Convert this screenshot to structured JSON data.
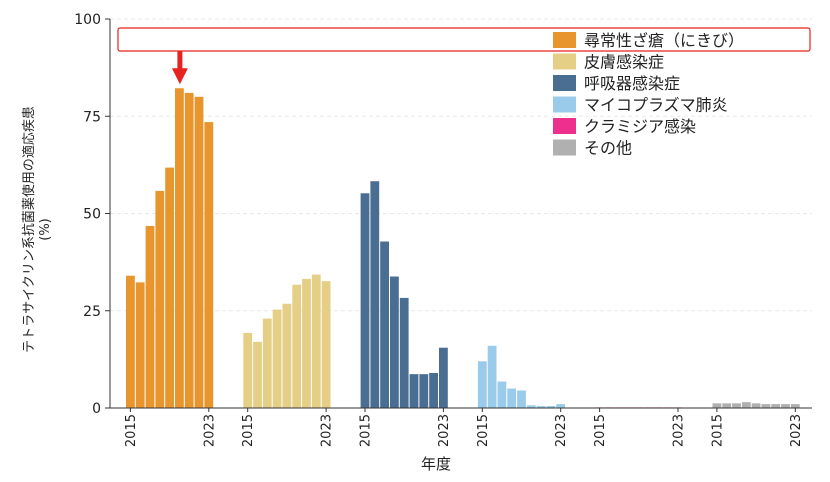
{
  "chart_data": {
    "type": "bar",
    "xlabel": "年度",
    "ylabel_lines": [
      "テトラサイクリン系抗菌薬使用の適応疾患",
      "(%)"
    ],
    "ylim": [
      0,
      100
    ],
    "yticks": [
      0,
      25,
      50,
      75,
      100
    ],
    "grid": true,
    "legend_position": "top-right",
    "group_tick_labels": [
      "2015",
      "2023"
    ],
    "series": [
      {
        "name": "尋常性ざ瘡（にきび）",
        "color": "#e8952e",
        "x": [
          2015,
          2016,
          2017,
          2018,
          2019,
          2020,
          2021,
          2022,
          2023
        ],
        "values": [
          34,
          32.3,
          46.8,
          55.8,
          61.8,
          82.2,
          81,
          80,
          73.5
        ]
      },
      {
        "name": "皮膚感染症",
        "color": "#e5cf86",
        "x": [
          2015,
          2016,
          2017,
          2018,
          2019,
          2020,
          2021,
          2022,
          2023
        ],
        "values": [
          19.3,
          17,
          23,
          25.3,
          26.8,
          31.7,
          33.2,
          34.3,
          32.6
        ]
      },
      {
        "name": "呼吸器感染症",
        "color": "#4a6e92",
        "x": [
          2015,
          2016,
          2017,
          2018,
          2019,
          2020,
          2021,
          2022,
          2023
        ],
        "values": [
          55.2,
          58.3,
          42.8,
          33.8,
          28.3,
          8.7,
          8.7,
          9,
          15.5
        ]
      },
      {
        "name": "マイコプラズマ肺炎",
        "color": "#9acbea",
        "x": [
          2015,
          2016,
          2017,
          2018,
          2019,
          2020,
          2021,
          2022,
          2023
        ],
        "values": [
          12,
          16,
          6.8,
          5,
          4.5,
          0.7,
          0.5,
          0.5,
          1
        ]
      },
      {
        "name": "クラミジア感染",
        "color": "#ef2f8d",
        "x": [
          2015,
          2016,
          2017,
          2018,
          2019,
          2020,
          2021,
          2022,
          2023
        ],
        "values": [
          0.1,
          0.1,
          0.1,
          0.1,
          0.1,
          0.1,
          0.1,
          0.1,
          0.1
        ]
      },
      {
        "name": "その他",
        "color": "#b0b0b0",
        "x": [
          2015,
          2016,
          2017,
          2018,
          2019,
          2020,
          2021,
          2022,
          2023
        ],
        "values": [
          1.2,
          1.2,
          1.2,
          1.5,
          1.2,
          1,
          1,
          1,
          1
        ]
      }
    ],
    "annotations": {
      "arrow": {
        "series": "尋常性ざ瘡（にきび）",
        "x": 2020,
        "color": "#e8231f"
      },
      "legend_highlight": {
        "series": "尋常性ざ瘡（にきび）",
        "color": "#e8231f"
      }
    }
  }
}
